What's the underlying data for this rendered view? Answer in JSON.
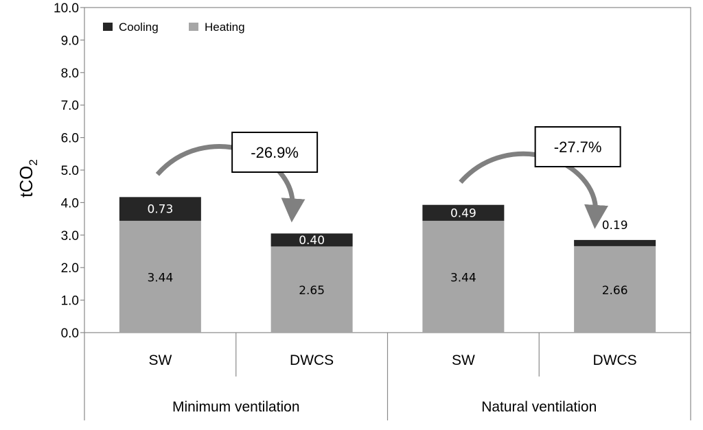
{
  "chart_data": {
    "type": "bar",
    "stacked": true,
    "ylabel": "tCO",
    "ylabel_subscript": "2",
    "ylim": [
      0,
      10
    ],
    "yticks": [
      "0.0",
      "1.0",
      "2.0",
      "3.0",
      "4.0",
      "5.0",
      "6.0",
      "7.0",
      "8.0",
      "9.0",
      "10.0"
    ],
    "categories": [
      "SW",
      "DWCS",
      "SW",
      "DWCS"
    ],
    "groups": [
      {
        "label": "Minimum ventilation",
        "categories": [
          "SW",
          "DWCS"
        ]
      },
      {
        "label": "Natural ventilation",
        "categories": [
          "SW",
          "DWCS"
        ]
      }
    ],
    "series": [
      {
        "name": "Heating",
        "color": "#a6a6a6",
        "values": [
          3.44,
          2.65,
          3.44,
          2.66
        ],
        "labels": [
          "3.44",
          "2.65",
          "3.44",
          "2.66"
        ]
      },
      {
        "name": "Cooling",
        "color": "#262626",
        "values": [
          0.73,
          0.4,
          0.49,
          0.19
        ],
        "labels": [
          "0.73",
          "0.40",
          "0.49",
          "0.19"
        ]
      }
    ],
    "legend": {
      "position": "top-left",
      "entries": [
        "Cooling",
        "Heating"
      ]
    },
    "annotations": [
      {
        "text": "-26.9%",
        "from_bar": 0,
        "to_bar": 1
      },
      {
        "text": "-27.7%",
        "from_bar": 2,
        "to_bar": 3
      }
    ],
    "grid": false
  }
}
